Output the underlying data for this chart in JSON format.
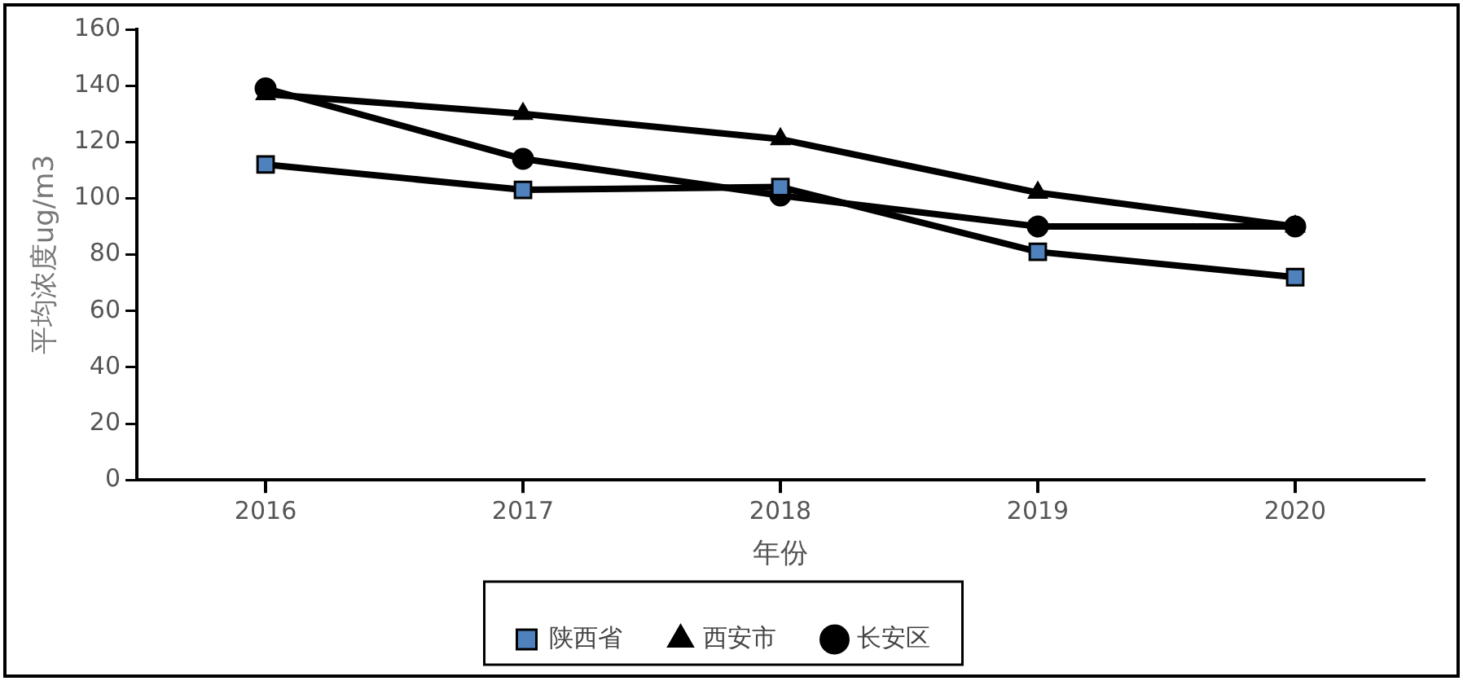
{
  "chart_data": {
    "type": "line",
    "xlabel": "年份",
    "ylabel": "平均浓度ug/m3",
    "categories": [
      "2016",
      "2017",
      "2018",
      "2019",
      "2020"
    ],
    "series": [
      {
        "name": "陕西省",
        "color": "#000000",
        "marker": "square",
        "values": [
          112,
          103,
          104,
          81,
          72
        ]
      },
      {
        "name": "西安市",
        "color": "#000000",
        "marker": "triangle",
        "values": [
          137,
          130,
          121,
          102,
          90
        ]
      },
      {
        "name": "长安区",
        "color": "#000000",
        "marker": "circle",
        "values": [
          139,
          114,
          101,
          90,
          90
        ]
      }
    ],
    "ylim": [
      0,
      160
    ],
    "yticks": [
      0,
      20,
      40,
      60,
      80,
      100,
      120,
      140,
      160
    ],
    "grid": false,
    "legend": "bottom"
  }
}
